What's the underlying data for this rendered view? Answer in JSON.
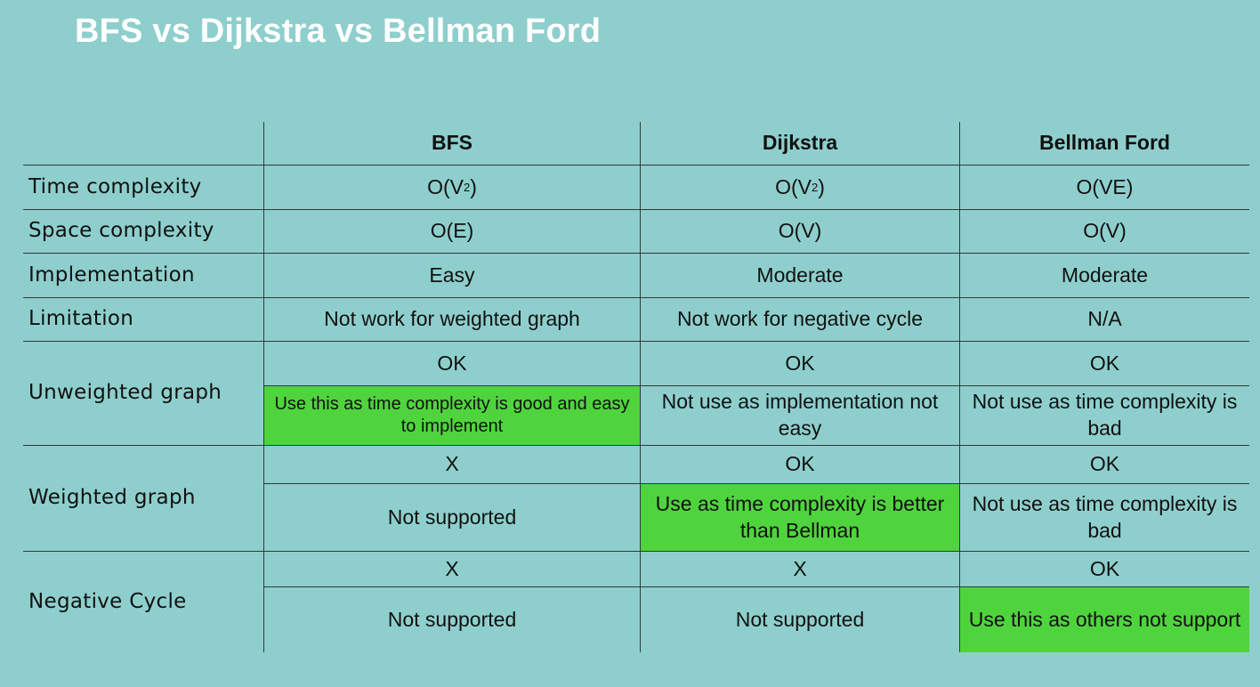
{
  "title": "BFS vs Dijkstra vs Bellman Ford",
  "headers": [
    "BFS",
    "Dijkstra",
    "Bellman Ford"
  ],
  "rows": {
    "time_complexity": {
      "label": "Time complexity",
      "bfs_base": "O(V",
      "bfs_sup": "2",
      "bfs_end": ")",
      "dijkstra_base": "O(V",
      "dijkstra_sup": "2",
      "dijkstra_end": ")",
      "bellman": "O(VE)"
    },
    "space_complexity": {
      "label": "Space complexity",
      "bfs": "O(E)",
      "dijkstra": "O(V)",
      "bellman": "O(V)"
    },
    "implementation": {
      "label": "Implementation",
      "bfs": "Easy",
      "dijkstra": "Moderate",
      "bellman": "Moderate"
    },
    "limitation": {
      "label": "Limitation",
      "bfs": "Not work for weighted graph",
      "dijkstra": "Not work for negative cycle",
      "bellman": "N/A"
    },
    "unweighted": {
      "label": "Unweighted graph",
      "bfs_ok": "OK",
      "dijkstra_ok": "OK",
      "bellman_ok": "OK",
      "bfs_note": "Use this as time complexity is good and easy to implement",
      "dijkstra_note": "Not use as implementation not easy",
      "bellman_note": "Not use as time complexity is bad"
    },
    "weighted": {
      "label": "Weighted graph",
      "bfs_ok": "X",
      "dijkstra_ok": "OK",
      "bellman_ok": "OK",
      "bfs_note": "Not supported",
      "dijkstra_note": "Use as time complexity is better than Bellman",
      "bellman_note": "Not use as time complexity is bad"
    },
    "negative": {
      "label": "Negative Cycle",
      "bfs_ok": "X",
      "dijkstra_ok": "X",
      "bellman_ok": "OK",
      "bfs_note": "Not supported",
      "dijkstra_note": "Not supported",
      "bellman_note": "Use this as others not support"
    }
  },
  "colors": {
    "background": "#8ecfcd",
    "highlight": "#4fd43d",
    "title": "#ffffff"
  }
}
